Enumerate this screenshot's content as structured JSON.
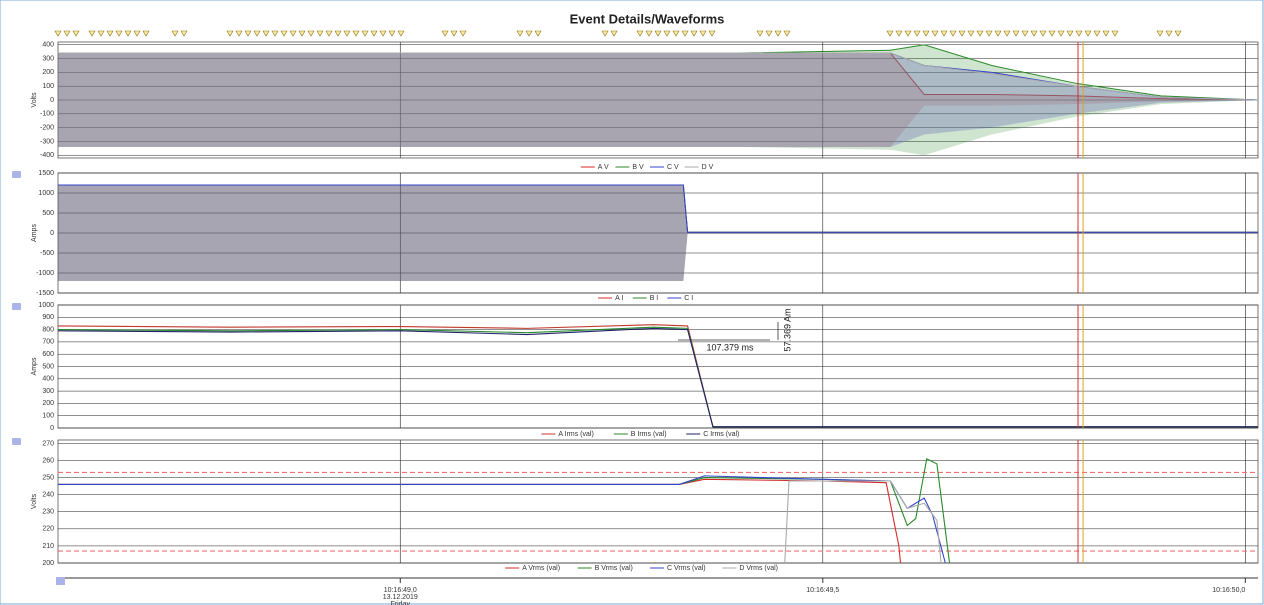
{
  "title": "Event Details/Waveforms",
  "x_axis": {
    "xlim": [
      48.595,
      50.015
    ],
    "xticks": [
      {
        "value": 49.0,
        "label": "10:16:49,0"
      },
      {
        "value": 49.5,
        "label": "10:16:49,5"
      },
      {
        "value": 50.0,
        "label": "10:16:50,0"
      }
    ],
    "date": "13.12.2019",
    "weekday": "Friday",
    "cursors": [
      49.802,
      49.808
    ]
  },
  "chart_data": [
    {
      "type": "waveform",
      "ylabel": "Volts",
      "ylim": [
        -420,
        420
      ],
      "yticks": [
        -400,
        -300,
        -200,
        -100,
        0,
        100,
        200,
        300,
        400
      ],
      "grid": true,
      "series": [
        {
          "name": "A V",
          "color": "#d42a2a",
          "x": [
            48.595,
            49.2,
            49.4,
            49.58,
            49.62,
            49.7,
            49.8,
            49.9,
            50.015
          ],
          "values": [
            340,
            340,
            340,
            340,
            40,
            40,
            30,
            10,
            0
          ]
        },
        {
          "name": "B V",
          "color": "#2a8a2a",
          "x": [
            48.595,
            49.2,
            49.4,
            49.58,
            49.62,
            49.7,
            49.8,
            49.9,
            50.015
          ],
          "values": [
            340,
            340,
            340,
            360,
            400,
            250,
            120,
            30,
            0
          ]
        },
        {
          "name": "C V",
          "color": "#3344cc",
          "x": [
            48.595,
            49.2,
            49.4,
            49.58,
            49.62,
            49.7,
            49.8,
            49.9,
            50.015
          ],
          "values": [
            340,
            340,
            340,
            340,
            250,
            200,
            100,
            20,
            0
          ]
        },
        {
          "name": "D V",
          "color": "#aaaaaa",
          "x": [
            48.595,
            49.2,
            49.4,
            49.58,
            49.62,
            49.7,
            49.8,
            49.9,
            50.015
          ],
          "values": [
            340,
            340,
            340,
            340,
            250,
            190,
            100,
            20,
            0
          ]
        }
      ]
    },
    {
      "type": "waveform",
      "ylabel": "Amps",
      "ylim": [
        -1500,
        1500
      ],
      "yticks": [
        -1500,
        -1000,
        -500,
        0,
        500,
        1000,
        1500
      ],
      "grid": true,
      "series": [
        {
          "name": "A I",
          "color": "#d42a2a",
          "x": [
            48.595,
            49.335,
            49.34,
            50.015
          ],
          "values": [
            1200,
            1200,
            20,
            20
          ]
        },
        {
          "name": "B I",
          "color": "#2a8a2a",
          "x": [
            48.595,
            49.335,
            49.34,
            50.015
          ],
          "values": [
            1200,
            1200,
            20,
            20
          ]
        },
        {
          "name": "C I",
          "color": "#3344cc",
          "x": [
            48.595,
            49.335,
            49.34,
            50.015
          ],
          "values": [
            1200,
            1200,
            20,
            20
          ]
        }
      ]
    },
    {
      "type": "line",
      "ylabel": "Amps",
      "ylim": [
        0,
        1000
      ],
      "yticks": [
        0,
        100,
        200,
        300,
        400,
        500,
        600,
        700,
        800,
        900,
        1000
      ],
      "grid": true,
      "annotations": [
        "107.379 ms",
        "57.369 Am"
      ],
      "series": [
        {
          "name": "A Irms (val)",
          "color": "#c0392b",
          "x": [
            48.595,
            48.8,
            49.0,
            49.15,
            49.3,
            49.34,
            49.37,
            50.015
          ],
          "values": [
            830,
            820,
            825,
            810,
            840,
            830,
            10,
            10
          ]
        },
        {
          "name": "B Irms (val)",
          "color": "#2a8a2a",
          "x": [
            48.595,
            48.8,
            49.0,
            49.15,
            49.3,
            49.34,
            49.37,
            50.015
          ],
          "values": [
            800,
            790,
            800,
            775,
            820,
            810,
            10,
            10
          ]
        },
        {
          "name": "C Irms (val)",
          "color": "#22226e",
          "x": [
            48.595,
            48.8,
            49.0,
            49.15,
            49.3,
            49.34,
            49.37,
            50.015
          ],
          "values": [
            790,
            780,
            790,
            760,
            810,
            800,
            10,
            10
          ]
        }
      ]
    },
    {
      "type": "line",
      "ylabel": "Volts",
      "ylim": [
        200,
        272
      ],
      "yticks": [
        200,
        210,
        220,
        230,
        240,
        250,
        260,
        270
      ],
      "grid": true,
      "limits": [
        253,
        207
      ],
      "series": [
        {
          "name": "A Vrms (val)",
          "color": "#d42a2a",
          "x": [
            48.595,
            49.33,
            49.36,
            49.5,
            49.575,
            49.59,
            49.592
          ],
          "values": [
            246,
            246,
            249,
            248,
            247,
            210,
            200
          ]
        },
        {
          "name": "B Vrms (val)",
          "color": "#2a8a2a",
          "x": [
            48.595,
            49.33,
            49.36,
            49.5,
            49.58,
            49.6,
            49.61,
            49.623,
            49.635,
            49.65
          ],
          "values": [
            246,
            246,
            250,
            249,
            248,
            222,
            226,
            261,
            258,
            200
          ]
        },
        {
          "name": "C Vrms (val)",
          "color": "#3344cc",
          "x": [
            48.595,
            49.33,
            49.36,
            49.5,
            49.58,
            49.6,
            49.62,
            49.63,
            49.645
          ],
          "values": [
            246,
            246,
            251,
            249,
            248,
            232,
            238,
            228,
            200
          ]
        },
        {
          "name": "D Vrms (val)",
          "color": "#aaaaaa",
          "x": [
            49.455,
            49.46,
            49.5,
            49.58,
            49.6,
            49.62,
            49.635,
            49.64
          ],
          "values": [
            200,
            248,
            248,
            248,
            232,
            235,
            225,
            200
          ]
        }
      ]
    }
  ]
}
